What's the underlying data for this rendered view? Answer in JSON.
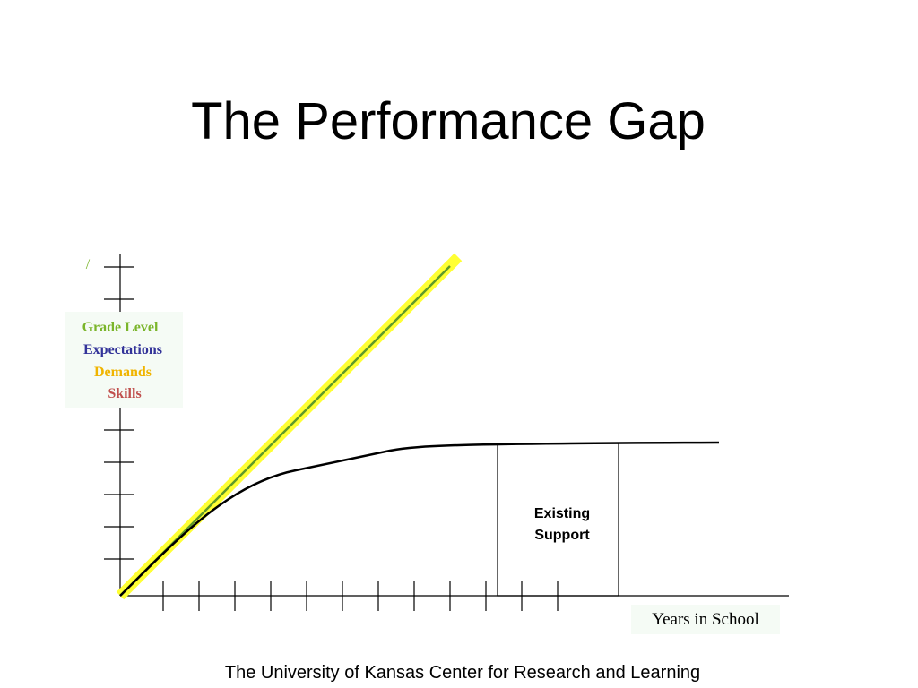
{
  "title": "The Performance Gap",
  "corner_mark": "/",
  "y_label": {
    "lines": [
      "Grade Level",
      "Expectations",
      "Demands",
      "Skills"
    ]
  },
  "box": {
    "lines": [
      "Existing",
      "Support"
    ]
  },
  "x_label": "Years in School",
  "footer": "The University of Kansas Center for Research and Learning"
}
